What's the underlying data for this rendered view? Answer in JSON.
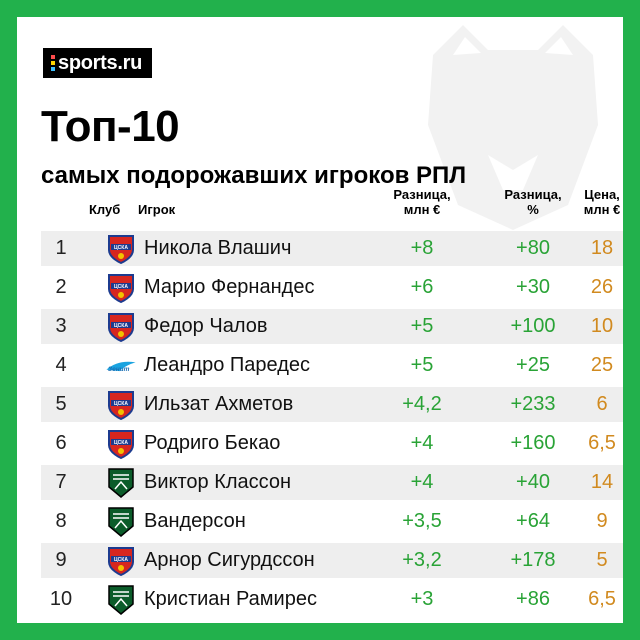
{
  "brand": {
    "name": "sports.ru",
    "accent": "#22b14c"
  },
  "title": "Топ-10",
  "subtitle": "самых подорожавших игроков РПЛ",
  "headers": {
    "club": "Клуб",
    "player": "Игрок",
    "diff_line1": "Разница,",
    "diff_line2": "млн €",
    "pct_line1": "Разница,",
    "pct_line2": "%",
    "price_line1": "Цена,",
    "price_line2": "млн €"
  },
  "colors": {
    "positive": "#29a336",
    "price": "#d18a1f",
    "row_shade": "#eeeeee"
  },
  "rows": [
    {
      "rank": "1",
      "club": "cska",
      "player": "Никола Влашич",
      "diff": "+8",
      "pct": "+80",
      "price": "18"
    },
    {
      "rank": "2",
      "club": "cska",
      "player": "Марио Фернандес",
      "diff": "+6",
      "pct": "+30",
      "price": "26"
    },
    {
      "rank": "3",
      "club": "cska",
      "player": "Федор Чалов",
      "diff": "+5",
      "pct": "+100",
      "price": "10"
    },
    {
      "rank": "4",
      "club": "zenit",
      "player": "Леандро Паредес",
      "diff": "+5",
      "pct": "+25",
      "price": "25"
    },
    {
      "rank": "5",
      "club": "cska",
      "player": "Ильзат Ахметов",
      "diff": "+4,2",
      "pct": "+233",
      "price": "6"
    },
    {
      "rank": "6",
      "club": "cska",
      "player": "Родриго Бекао",
      "diff": "+4",
      "pct": "+160",
      "price": "6,5"
    },
    {
      "rank": "7",
      "club": "krasnodar",
      "player": "Виктор Классон",
      "diff": "+4",
      "pct": "+40",
      "price": "14"
    },
    {
      "rank": "8",
      "club": "krasnodar",
      "player": "Вандерсон",
      "diff": "+3,5",
      "pct": "+64",
      "price": "9"
    },
    {
      "rank": "9",
      "club": "cska",
      "player": "Арнор Сигурдссон",
      "diff": "+3,2",
      "pct": "+178",
      "price": "5"
    },
    {
      "rank": "10",
      "club": "krasnodar",
      "player": "Кристиан Рамирес",
      "diff": "+3",
      "pct": "+86",
      "price": "6,5"
    }
  ]
}
